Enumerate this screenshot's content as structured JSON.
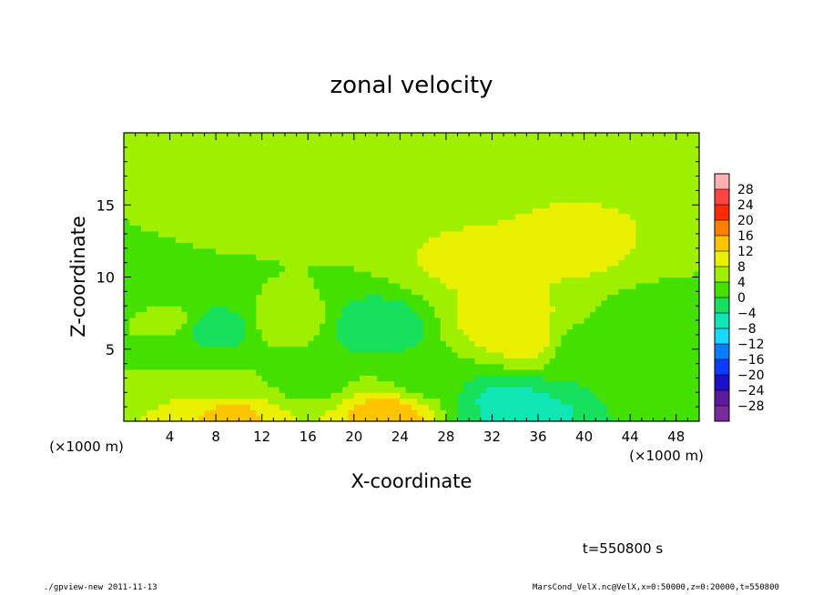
{
  "chart_data": {
    "type": "heatmap",
    "title": "zonal velocity",
    "xlabel": "X-coordinate",
    "ylabel": "Z-coordinate",
    "x_unit_left": "(×1000 m)",
    "x_unit_right": "(×1000 m)",
    "xlim": [
      0,
      50
    ],
    "ylim": [
      0,
      20
    ],
    "x_ticks": [
      4,
      8,
      12,
      16,
      20,
      24,
      28,
      32,
      36,
      40,
      44,
      48
    ],
    "y_ticks": [
      5,
      10,
      15
    ],
    "colorbar": {
      "levels": [
        28,
        24,
        20,
        16,
        12,
        8,
        4,
        0,
        -4,
        -8,
        -12,
        -16,
        -20,
        -24,
        -28
      ],
      "labels": [
        "28",
        "24",
        "20",
        "16",
        "12",
        "8",
        "4",
        "0",
        "−4",
        "−8",
        "−12",
        "−16",
        "−20",
        "−24",
        "−28"
      ]
    },
    "field_features": [
      {
        "x": 0,
        "z": 9,
        "u": -1
      },
      {
        "x": 4,
        "z": 7,
        "u": 1
      },
      {
        "x": 8,
        "z": 6.5,
        "u": -7
      },
      {
        "x": 9.5,
        "z": 3,
        "u": 0
      },
      {
        "x": 9.5,
        "z": 0.5,
        "u": 9
      },
      {
        "x": 14,
        "z": 7,
        "u": 3
      },
      {
        "x": 16,
        "z": 3,
        "u": -2
      },
      {
        "x": 22,
        "z": 6.5,
        "u": -8
      },
      {
        "x": 23,
        "z": 0.5,
        "u": 11
      },
      {
        "x": 26,
        "z": 3,
        "u": -2
      },
      {
        "x": 30,
        "z": 11,
        "u": 5
      },
      {
        "x": 33,
        "z": 1.5,
        "u": -9
      },
      {
        "x": 35,
        "z": 0.5,
        "u": -10
      },
      {
        "x": 33,
        "z": 7,
        "u": 7
      },
      {
        "x": 35,
        "z": 5.5,
        "u": 6
      },
      {
        "x": 40,
        "z": 5,
        "u": -4
      },
      {
        "x": 39,
        "z": 12,
        "u": 5
      },
      {
        "x": 46,
        "z": 7,
        "u": -2
      },
      {
        "x": 48,
        "z": 2,
        "u": 0
      },
      {
        "x": 25,
        "z": 17,
        "u": 2
      },
      {
        "x": 10,
        "z": 15,
        "u": 1
      }
    ]
  },
  "annotations": {
    "time": "t=550800 s",
    "command": "./gpview-new   2011-11-13",
    "source": "MarsCond_VelX.nc@VelX,x=0:50000,z=0:20000,t=550800"
  }
}
